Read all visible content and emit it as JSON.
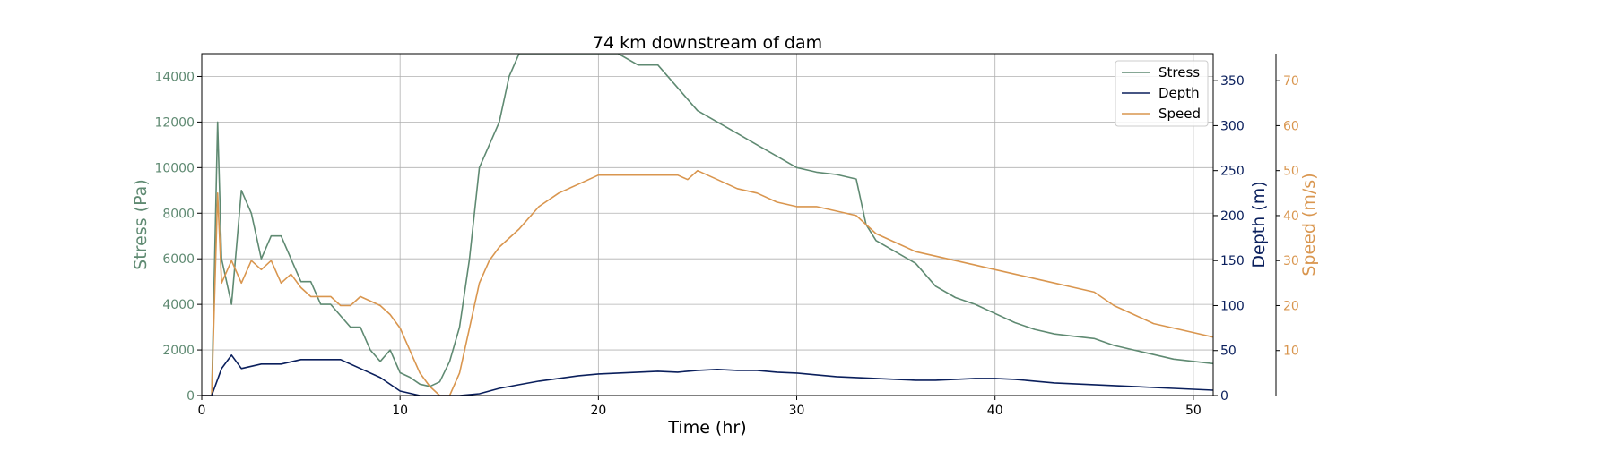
{
  "chart_data": {
    "type": "line",
    "title": "74 km downstream of dam",
    "xlabel": "Time (hr)",
    "xlim": [
      0,
      51
    ],
    "x_ticks": [
      0,
      10,
      20,
      30,
      40,
      50
    ],
    "grid": true,
    "legend": {
      "placement": "top-right",
      "entries": [
        "Stress",
        "Depth",
        "Speed"
      ]
    },
    "axes": {
      "stress": {
        "label": "Stress (Pa)",
        "ylim": [
          0,
          15000
        ],
        "ticks": [
          0,
          2000,
          4000,
          6000,
          8000,
          10000,
          12000,
          14000
        ],
        "color": "#5f8a72",
        "side": "left"
      },
      "depth": {
        "label": "Depth (m)",
        "ylim": [
          0,
          380
        ],
        "ticks": [
          0,
          50,
          100,
          150,
          200,
          250,
          300,
          350
        ],
        "color": "#0a1f5c",
        "side": "right"
      },
      "speed": {
        "label": "Speed (m/s)",
        "ylim": [
          0,
          76
        ],
        "ticks": [
          10,
          20,
          30,
          40,
          50,
          60,
          70
        ],
        "color": "#d9964f",
        "side": "right-outer"
      }
    },
    "series": [
      {
        "name": "Stress",
        "axis": "stress",
        "color": "#5f8a72",
        "x": [
          0,
          0.5,
          0.8,
          1,
          1.5,
          2,
          2.5,
          3,
          3.5,
          4,
          4.5,
          5,
          5.5,
          6,
          6.5,
          7,
          7.5,
          8,
          8.5,
          9,
          9.5,
          10,
          10.5,
          11,
          11.5,
          12,
          12.5,
          13,
          13.5,
          14,
          14.5,
          15,
          15.5,
          16,
          17,
          18,
          19,
          20,
          21,
          22,
          23,
          24,
          25,
          26,
          27,
          28,
          29,
          30,
          31,
          32,
          33,
          33.5,
          34,
          35,
          36,
          37,
          38,
          39,
          40,
          41,
          42,
          43,
          44,
          45,
          46,
          47,
          48,
          49,
          50,
          51
        ],
        "y": [
          0,
          0,
          12000,
          6000,
          4000,
          9000,
          8000,
          6000,
          7000,
          7000,
          6000,
          5000,
          5000,
          4000,
          4000,
          3500,
          3000,
          3000,
          2000,
          1500,
          2000,
          1000,
          800,
          500,
          400,
          600,
          1500,
          3000,
          6000,
          10000,
          11000,
          12000,
          14000,
          15000,
          15000,
          15000,
          15000,
          15000,
          15000,
          14500,
          14500,
          13500,
          12500,
          12000,
          11500,
          11000,
          10500,
          10000,
          9800,
          9700,
          9500,
          7500,
          6800,
          6300,
          5800,
          4800,
          4300,
          4000,
          3600,
          3200,
          2900,
          2700,
          2600,
          2500,
          2200,
          2000,
          1800,
          1600,
          1500,
          1400
        ]
      },
      {
        "name": "Depth",
        "axis": "depth",
        "color": "#0a1f5c",
        "x": [
          0,
          0.5,
          1,
          1.5,
          2,
          3,
          4,
          5,
          6,
          7,
          8,
          9,
          10,
          11,
          12,
          13,
          14,
          15,
          16,
          17,
          18,
          19,
          20,
          21,
          22,
          23,
          24,
          25,
          26,
          27,
          28,
          29,
          30,
          31,
          32,
          33,
          34,
          35,
          36,
          37,
          38,
          39,
          40,
          41,
          42,
          43,
          44,
          45,
          46,
          47,
          48,
          49,
          50,
          51
        ],
        "y": [
          0,
          0,
          30,
          45,
          30,
          35,
          35,
          40,
          40,
          40,
          30,
          20,
          5,
          0,
          0,
          0,
          2,
          8,
          12,
          16,
          19,
          22,
          24,
          25,
          26,
          27,
          26,
          28,
          29,
          28,
          28,
          26,
          25,
          23,
          21,
          20,
          19,
          18,
          17,
          17,
          18,
          19,
          19,
          18,
          16,
          14,
          13,
          12,
          11,
          10,
          9,
          8,
          7,
          6
        ]
      },
      {
        "name": "Speed",
        "axis": "speed",
        "color": "#d9964f",
        "x": [
          0,
          0.5,
          0.8,
          1,
          1.5,
          2,
          2.5,
          3,
          3.5,
          4,
          4.5,
          5,
          5.5,
          6,
          6.5,
          7,
          7.5,
          8,
          8.5,
          9,
          9.5,
          10,
          10.5,
          11,
          11.5,
          12,
          12.5,
          13,
          13.5,
          14,
          14.5,
          15,
          15.5,
          16,
          17,
          18,
          19,
          20,
          21,
          22,
          23,
          24,
          24.5,
          25,
          26,
          27,
          28,
          29,
          30,
          31,
          32,
          33,
          34,
          35,
          36,
          37,
          38,
          39,
          40,
          41,
          42,
          43,
          44,
          45,
          46,
          47,
          48,
          49,
          50,
          51
        ],
        "y": [
          0,
          0,
          45,
          25,
          30,
          25,
          30,
          28,
          30,
          25,
          27,
          24,
          22,
          22,
          22,
          20,
          20,
          22,
          21,
          20,
          18,
          15,
          10,
          5,
          2,
          0,
          0,
          5,
          15,
          25,
          30,
          33,
          35,
          37,
          42,
          45,
          47,
          49,
          49,
          49,
          49,
          49,
          48,
          50,
          48,
          46,
          45,
          43,
          42,
          42,
          41,
          40,
          36,
          34,
          32,
          31,
          30,
          29,
          28,
          27,
          26,
          25,
          24,
          23,
          20,
          18,
          16,
          15,
          14,
          13
        ]
      }
    ]
  }
}
